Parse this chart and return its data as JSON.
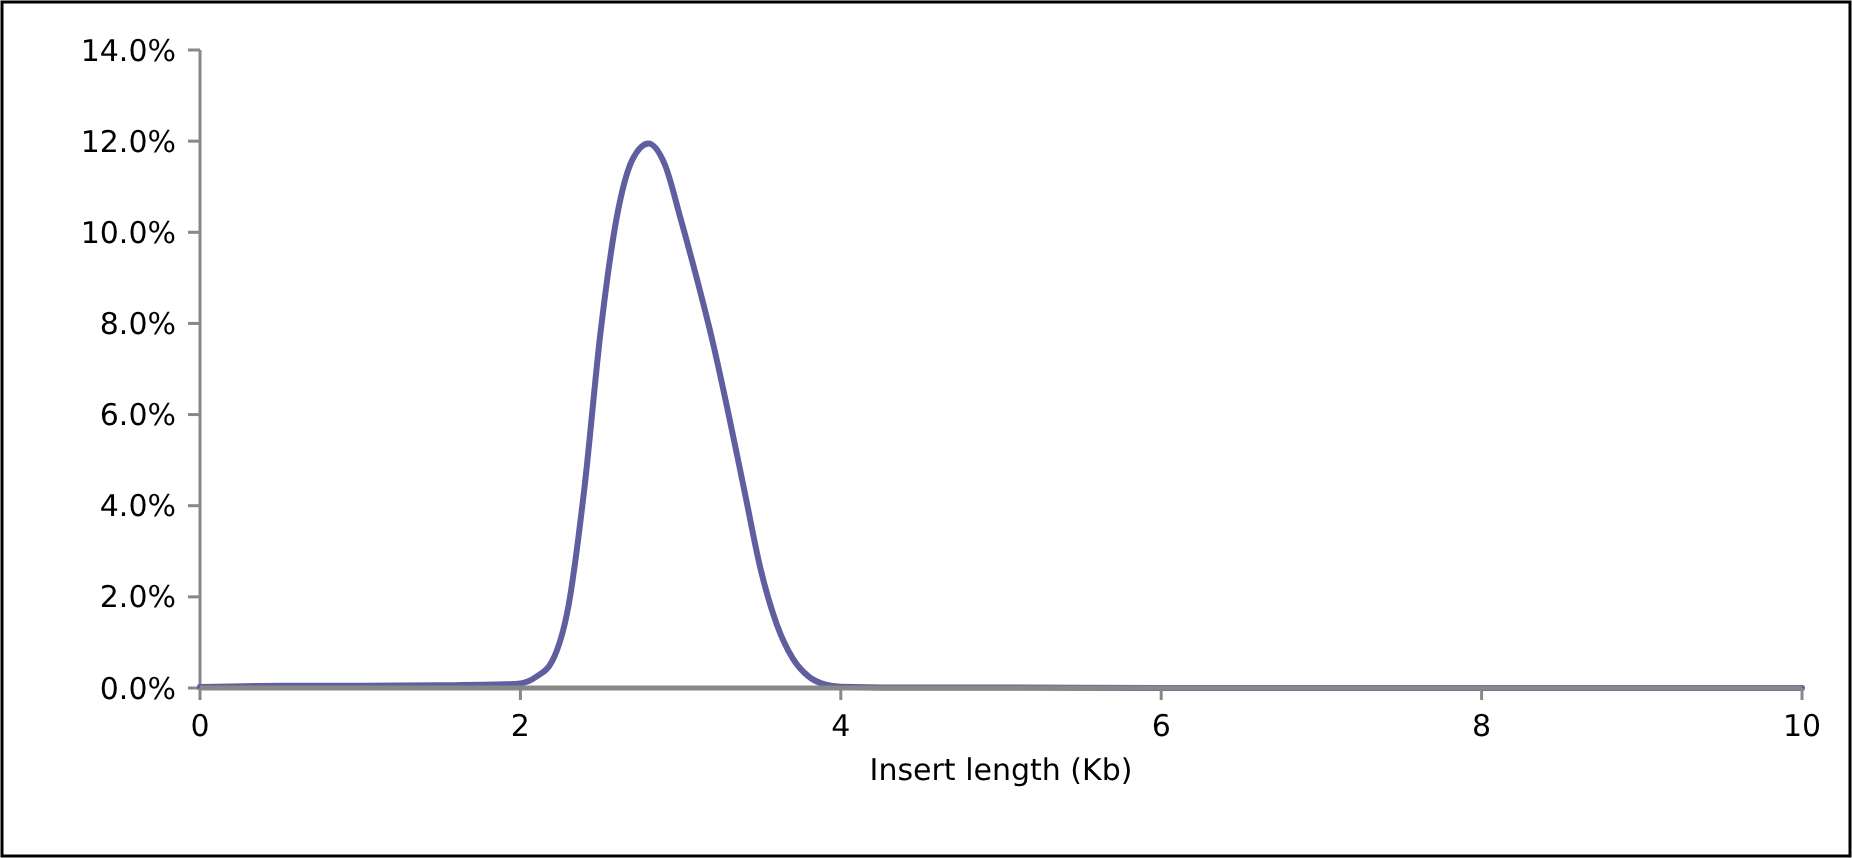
{
  "chart_data": {
    "type": "line",
    "xlabel": "Insert length (Kb)",
    "series": [
      {
        "color": "#5f5f9f",
        "x": [
          0,
          0.5,
          1,
          1.5,
          1.9,
          2.0,
          2.1,
          2.2,
          2.3,
          2.4,
          2.5,
          2.6,
          2.7,
          2.8,
          2.9,
          3.0,
          3.1,
          3.2,
          3.3,
          3.4,
          3.5,
          3.6,
          3.7,
          3.8,
          3.9,
          4.0,
          4.5,
          5,
          6,
          7,
          8,
          9,
          10
        ],
        "values": [
          0.02,
          0.05,
          0.05,
          0.06,
          0.08,
          0.1,
          0.25,
          0.6,
          1.8,
          4.4,
          7.8,
          10.3,
          11.6,
          11.95,
          11.5,
          10.3,
          9.0,
          7.6,
          6.0,
          4.3,
          2.6,
          1.4,
          0.65,
          0.25,
          0.08,
          0.03,
          0.01,
          0.01,
          0,
          0,
          0,
          0,
          0
        ]
      }
    ],
    "xlim": [
      0,
      10
    ],
    "xticks": [
      0,
      2,
      4,
      6,
      8,
      10
    ],
    "ylim": [
      0,
      14
    ],
    "yticks": [
      {
        "value": 0,
        "label": "0.0%"
      },
      {
        "value": 2,
        "label": "2.0%"
      },
      {
        "value": 4,
        "label": "4.0%"
      },
      {
        "value": 6,
        "label": "6.0%"
      },
      {
        "value": 8,
        "label": "8.0%"
      },
      {
        "value": 10,
        "label": "10.0%"
      },
      {
        "value": 12,
        "label": "12.0%"
      },
      {
        "value": 14,
        "label": "14.0%"
      }
    ],
    "grid": false,
    "marker": "none",
    "line_style": "solid"
  }
}
